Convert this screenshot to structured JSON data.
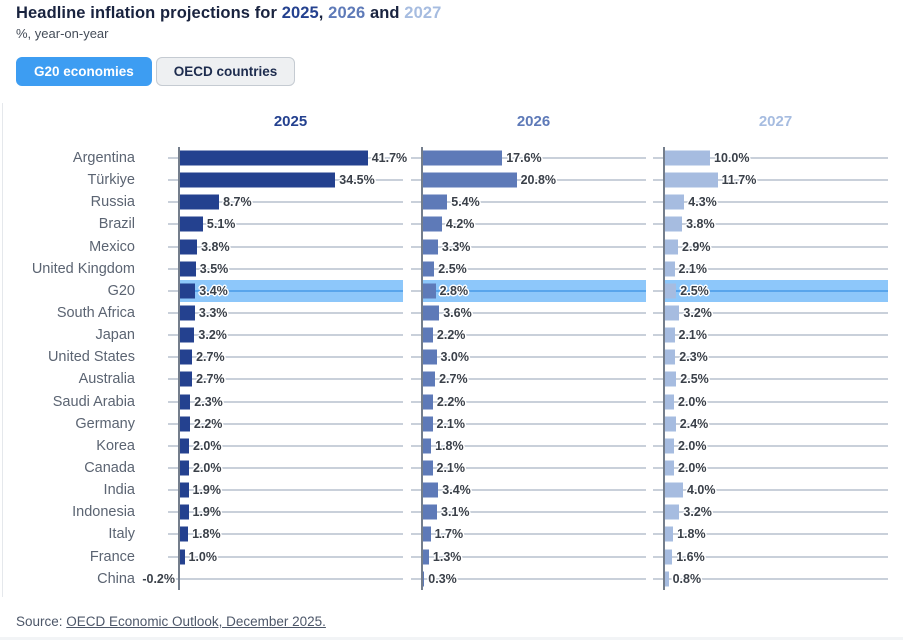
{
  "title": {
    "prefix": "Headline inflation projections for ",
    "year1": "2025",
    "comma": ", ",
    "year2": "2026",
    "and": " and ",
    "year3": "2027"
  },
  "subtitle": "%, year-on-year",
  "tabs": [
    {
      "label": "G20 economies",
      "active": true
    },
    {
      "label": "OECD countries",
      "active": false
    }
  ],
  "source": {
    "prefix": "Source: ",
    "link": "OECD Economic Outlook, December 2025."
  },
  "colors": {
    "active_tab": "#3d9df2",
    "inactive_tab_bg": "#eef0f2",
    "highlight_band": "#8dc7fa",
    "highlight_line": "#58a5ec",
    "row_line": "#c9d0da",
    "axis": "#747e8c",
    "title_text": "#19233f"
  },
  "chart_data": {
    "type": "bar",
    "orientation": "horizontal",
    "title": "Headline inflation projections for 2025, 2026 and 2027",
    "subtitle": "%, year-on-year",
    "value_suffix": "%",
    "xlim": [
      0,
      50
    ],
    "grid": "per-row lines",
    "highlight_category": "G20",
    "highlight_color": "#8dc7fa",
    "categories": [
      "Argentina",
      "Türkiye",
      "Russia",
      "Brazil",
      "Mexico",
      "United Kingdom",
      "G20",
      "South Africa",
      "Japan",
      "United States",
      "Australia",
      "Saudi Arabia",
      "Germany",
      "Korea",
      "Canada",
      "India",
      "Indonesia",
      "Italy",
      "France",
      "China"
    ],
    "series": [
      {
        "name": "2025",
        "color": "#24418f",
        "values": [
          41.7,
          34.5,
          8.7,
          5.1,
          3.8,
          3.5,
          3.4,
          3.3,
          3.2,
          2.7,
          2.7,
          2.3,
          2.2,
          2.0,
          2.0,
          1.9,
          1.9,
          1.8,
          1.0,
          -0.2
        ]
      },
      {
        "name": "2026",
        "color": "#5e7ab8",
        "values": [
          17.6,
          20.8,
          5.4,
          4.2,
          3.3,
          2.5,
          2.8,
          3.6,
          2.2,
          3.0,
          2.7,
          2.2,
          2.1,
          1.8,
          2.1,
          3.4,
          3.1,
          1.7,
          1.3,
          0.3
        ]
      },
      {
        "name": "2027",
        "color": "#a6bce0",
        "values": [
          10.0,
          11.7,
          4.3,
          3.8,
          2.9,
          2.1,
          2.5,
          3.2,
          2.1,
          2.3,
          2.5,
          2.0,
          2.4,
          2.0,
          2.0,
          4.0,
          3.2,
          1.8,
          1.6,
          0.8
        ]
      }
    ]
  }
}
